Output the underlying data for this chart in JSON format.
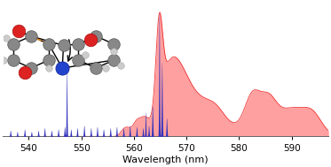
{
  "xmin": 535,
  "xmax": 597,
  "xlabel": "Wavelength (nm)",
  "xlabel_fontsize": 8,
  "tick_fontsize": 7.5,
  "xticks": [
    540,
    550,
    560,
    570,
    580,
    590
  ],
  "background_color": "#ffffff",
  "red_color": "#ff8080",
  "red_edge_color": "#ee2222",
  "blue_color": "#3333bb",
  "red_alpha": 0.75,
  "blue_alpha": 1.0,
  "fig_width": 3.73,
  "fig_height": 1.89,
  "dpi": 100
}
